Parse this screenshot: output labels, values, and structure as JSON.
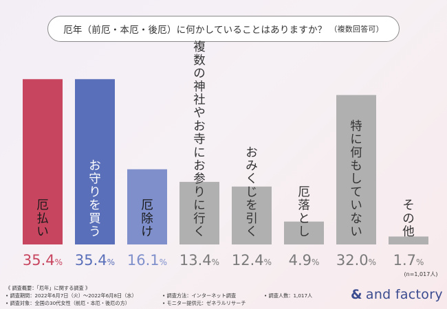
{
  "title": {
    "main": "厄年（前厄・本厄・後厄）に何かしていることはありますか？",
    "sub": "（複数回答可）"
  },
  "chart_data": {
    "type": "bar",
    "title": "厄年（前厄・本厄・後厄）に何かしていることはありますか？（複数回答可）",
    "categories": [
      "厄払い",
      "お守りを買う",
      "厄除け",
      "複数の神社やお寺にお参りに行く",
      "おみくじを引く",
      "厄落とし",
      "特に何もしていない",
      "その他"
    ],
    "values": [
      35.4,
      35.4,
      16.1,
      13.4,
      12.4,
      4.9,
      32.0,
      1.7
    ],
    "value_labels": [
      "35.4",
      "35.4",
      "16.1",
      "13.4",
      "12.4",
      "4.9",
      "32.0",
      "1.7"
    ],
    "unit": "%",
    "ylim": [
      0,
      40
    ],
    "colors": [
      "#c8455f",
      "#5a6fb9",
      "#7e8fcb",
      "#b0b0b0",
      "#b0b0b0",
      "#b0b0b0",
      "#b0b0b0",
      "#b0b0b0"
    ],
    "label_colors": [
      "#c8455f",
      "#5a6fb9",
      "#7e8fcb",
      "#7a7a7a",
      "#7a7a7a",
      "#7a7a7a",
      "#7a7a7a",
      "#7a7a7a"
    ],
    "inside_label_colors": [
      "#1a1a1a",
      "#ffffff",
      "#1a1a1a",
      "#333333",
      "#333333",
      "#333333",
      "#333333",
      "#333333"
    ],
    "n_note": "(n=1,017人)"
  },
  "footer": {
    "heading": "《 調査概要：「厄年」に関する調査 》",
    "period": "• 調査期間：2022年6月7日（火）〜2022年6月8日（水）",
    "target": "• 調査対象：全国の30代女性（前厄・本厄・後厄の方）",
    "method": "• 調査方法：インターネット調査",
    "provider": "• モニター提供元：ゼネラルリサーチ",
    "count": "• 調査人数：1,017人"
  },
  "logo": {
    "amp": "&",
    "text": "and factory"
  },
  "colors": {
    "accent": "#3b4b8f"
  }
}
